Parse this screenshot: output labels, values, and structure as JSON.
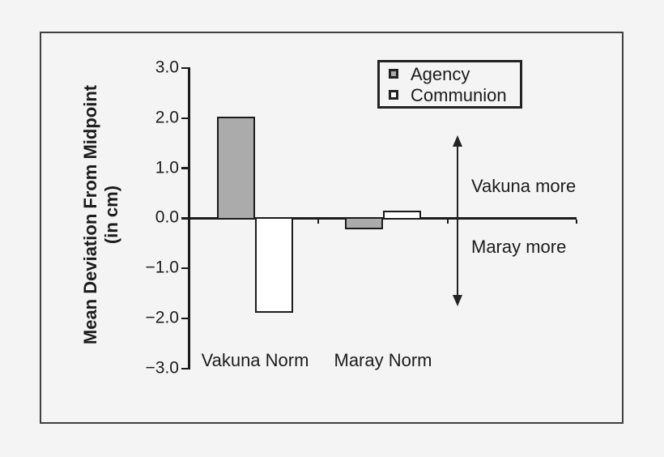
{
  "figure": {
    "background_color": "#f4f4f5",
    "frame_border_color": "#3f3f3f",
    "text_color": "#1c1c1c"
  },
  "chart_data": {
    "type": "bar",
    "title": "",
    "categories": [
      "Vakuna Norm",
      "Maray Norm"
    ],
    "series": [
      {
        "name": "Agency",
        "fill_color": "#ababab",
        "values": [
          2.0,
          -0.2
        ]
      },
      {
        "name": "Communion",
        "fill_color": "#ffffff",
        "values": [
          -1.87,
          0.13
        ]
      }
    ],
    "ylabel_line1": "Mean Deviation From Midpoint",
    "ylabel_line2": "(in cm)",
    "xlabel": "",
    "ylim": [
      -3.0,
      3.0
    ],
    "ytick_step": 1.0,
    "ytick_labels": [
      "3.0",
      "2.0",
      "1.0",
      "0.0",
      "−1.0",
      "−2.0",
      "−3.0"
    ],
    "grid": false,
    "axis_color": "#1b1b1b",
    "bar_edge_color": "#1b1b1b",
    "legend_position": "top-right"
  },
  "legend": {
    "items": [
      {
        "label": "Agency",
        "swatch_color": "#ababab"
      },
      {
        "label": "Communion",
        "swatch_color": "#ffffff"
      }
    ]
  },
  "annotations": {
    "upper_label": "Vakuna more",
    "lower_label": "Maray more",
    "arrow_type": "double-headed-vertical"
  }
}
